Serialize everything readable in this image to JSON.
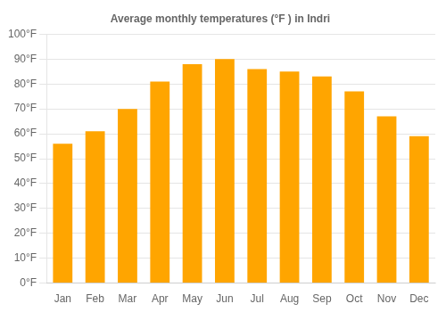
{
  "chart_data": {
    "type": "bar",
    "title": "Average monthly temperatures (°F ) in Indri",
    "categories": [
      "Jan",
      "Feb",
      "Mar",
      "Apr",
      "May",
      "Jun",
      "Jul",
      "Aug",
      "Sep",
      "Oct",
      "Nov",
      "Dec"
    ],
    "values": [
      56,
      61,
      70,
      81,
      88,
      90,
      86,
      85,
      83,
      77,
      67,
      59
    ],
    "color": "#FFA500",
    "ylim": [
      0,
      100
    ],
    "yticks": [
      {
        "value": 0,
        "label": "0°F"
      },
      {
        "value": 10,
        "label": "10°F"
      },
      {
        "value": 20,
        "label": "20°F"
      },
      {
        "value": 30,
        "label": "30°F"
      },
      {
        "value": 40,
        "label": "40°F"
      },
      {
        "value": 50,
        "label": "50°F"
      },
      {
        "value": 60,
        "label": "60°F"
      },
      {
        "value": 70,
        "label": "70°F"
      },
      {
        "value": 80,
        "label": "80°F"
      },
      {
        "value": 90,
        "label": "90°F"
      },
      {
        "value": 100,
        "label": "100°F"
      }
    ],
    "grid": true
  }
}
